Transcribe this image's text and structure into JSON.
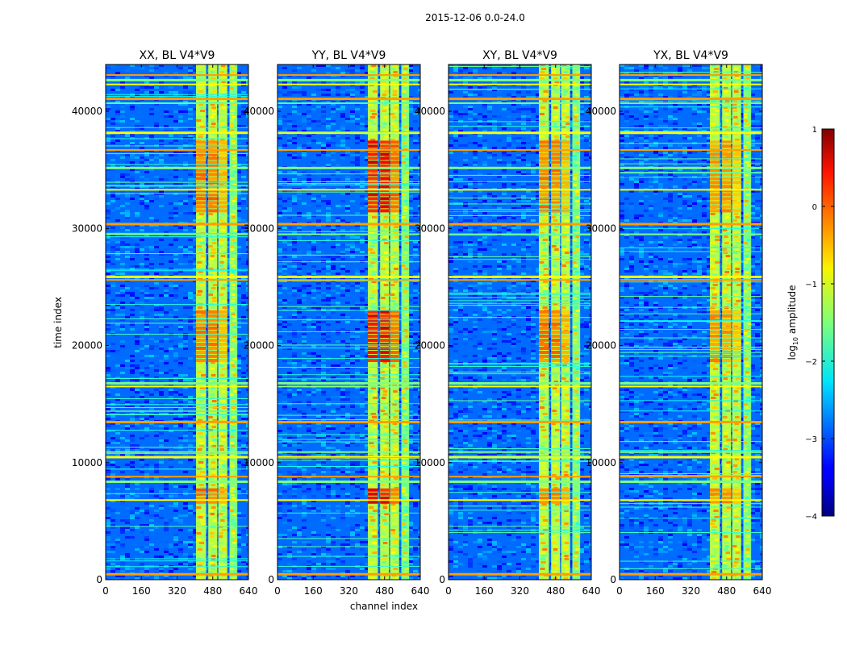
{
  "chart_data": {
    "type": "heatmap",
    "suptitle": "2015-12-06 0.0-24.0",
    "xlabel": "channel index",
    "ylabel": "time index",
    "xlim": [
      0,
      640
    ],
    "ylim": [
      0,
      44000
    ],
    "xticks": [
      0,
      160,
      320,
      480,
      640
    ],
    "yticks": [
      0,
      10000,
      20000,
      30000,
      40000
    ],
    "colormap": "jet",
    "colorbar": {
      "label": "log10 amplitude",
      "label_base": "log",
      "label_sub": "10",
      "label_rest": " amplitude",
      "range": [
        -4,
        1
      ],
      "ticks": [
        1,
        0,
        -1,
        -2,
        -3,
        -4
      ],
      "tick_labels": [
        "1",
        "0",
        "−1",
        "−2",
        "−3",
        "−4"
      ]
    },
    "panels": [
      {
        "title": "XX, BL V4*V9",
        "pol": "XX"
      },
      {
        "title": "YY, BL V4*V9",
        "pol": "YY"
      },
      {
        "title": "XY, BL V4*V9",
        "pol": "XY"
      },
      {
        "title": "YX, BL V4*V9",
        "pol": "YX"
      }
    ],
    "bright_channel_bands": [
      [
        405,
        450
      ],
      [
        460,
        500
      ],
      [
        505,
        545
      ],
      [
        555,
        590
      ]
    ],
    "strong_time_blocks": [
      [
        6500,
        7800
      ],
      [
        18800,
        23000
      ],
      [
        31500,
        37500
      ]
    ],
    "flagged_time_rows": [
      500,
      6800,
      8400,
      8800,
      10500,
      10900,
      13500,
      16500,
      16800,
      25600,
      25900,
      29500,
      30400,
      33300,
      35200,
      36700,
      38200,
      40700,
      41100,
      42300,
      42700,
      43100
    ]
  }
}
